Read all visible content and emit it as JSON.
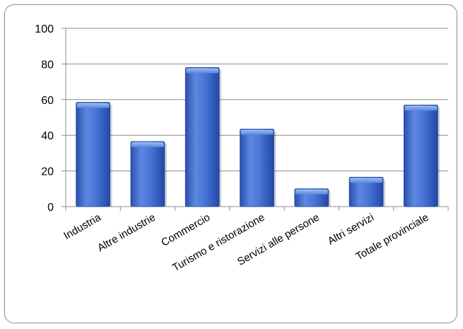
{
  "chart_data": {
    "type": "bar",
    "title": "",
    "xlabel": "",
    "ylabel": "",
    "categories": [
      "Industria",
      "Altre industrie",
      "Commercio",
      "Turismo e ristorazione",
      "Servizi alle persone",
      "Altri servizi",
      "Totale provinciale"
    ],
    "values": [
      58.5,
      36.5,
      78,
      43.5,
      10,
      16.5,
      57
    ],
    "ylim": [
      0,
      100
    ],
    "yticks": [
      0,
      20,
      40,
      60,
      80,
      100
    ],
    "grid": true,
    "legend": "none",
    "colors": {
      "bar_light": "#7fa6ea",
      "bar_mid": "#3f6fd2",
      "bar_dark": "#1f45a3",
      "gridline": "#8c8c8c",
      "axis": "#8c8c8c",
      "frame": "#8a8a8a"
    }
  }
}
